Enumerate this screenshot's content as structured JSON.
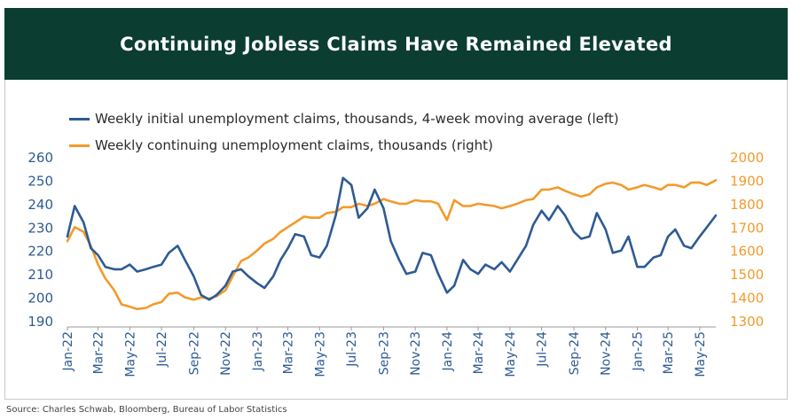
{
  "header": {
    "title": "Continuing Jobless Claims Have Remained Elevated"
  },
  "footer": {
    "source": "Source: Charles Schwab, Bloomberg, Bureau of Labor Statistics"
  },
  "colors": {
    "banner": "#0b3d30",
    "initial_claims": "#2e5b93",
    "continuing_claims": "#f39a2b",
    "left_axis_text": "#2e5b93",
    "right_axis_text": "#f39a2b"
  },
  "chart_data": {
    "type": "line",
    "title": "Continuing Jobless Claims Have Remained Elevated",
    "grid": false,
    "legend_position": "top-left",
    "x_ticks": [
      "Jan-22",
      "Mar-22",
      "May-22",
      "Jul-22",
      "Sep-22",
      "Nov-22",
      "Jan-23",
      "Mar-23",
      "May-23",
      "Jul-23",
      "Sep-23",
      "Nov-23",
      "Jan-24",
      "Mar-24",
      "May-24",
      "Jul-24",
      "Sep-24",
      "Nov-24",
      "Jan-25",
      "Mar-25",
      "May-25"
    ],
    "x_range": [
      "2022-01",
      "2025-06"
    ],
    "y_left": {
      "ticks": [
        190,
        200,
        210,
        220,
        230,
        240,
        250,
        260
      ],
      "range": [
        190,
        260
      ]
    },
    "y_right": {
      "ticks": [
        1300,
        1400,
        1500,
        1600,
        1700,
        1800,
        1900,
        2000
      ],
      "range": [
        1300,
        2000
      ]
    },
    "series": [
      {
        "name": "Weekly initial unemployment claims, thousands, 4-week moving average (left)",
        "axis": "left",
        "x": [
          "2022-01",
          "2022-01-15",
          "2022-02",
          "2022-02-15",
          "2022-03",
          "2022-03-15",
          "2022-04",
          "2022-04-15",
          "2022-05",
          "2022-05-15",
          "2022-06",
          "2022-06-15",
          "2022-07",
          "2022-07-15",
          "2022-08",
          "2022-08-15",
          "2022-09",
          "2022-09-15",
          "2022-10",
          "2022-10-15",
          "2022-11",
          "2022-11-15",
          "2022-12",
          "2022-12-15",
          "2023-01",
          "2023-01-15",
          "2023-02",
          "2023-02-15",
          "2023-03",
          "2023-03-15",
          "2023-04",
          "2023-04-15",
          "2023-05",
          "2023-05-15",
          "2023-06",
          "2023-06-15",
          "2023-07",
          "2023-07-15",
          "2023-08",
          "2023-08-15",
          "2023-09",
          "2023-09-15",
          "2023-10",
          "2023-10-15",
          "2023-11",
          "2023-11-15",
          "2023-12",
          "2023-12-15",
          "2024-01",
          "2024-01-15",
          "2024-02",
          "2024-02-15",
          "2024-03",
          "2024-03-15",
          "2024-04",
          "2024-04-15",
          "2024-05",
          "2024-05-15",
          "2024-06",
          "2024-06-15",
          "2024-07",
          "2024-07-15",
          "2024-08",
          "2024-08-15",
          "2024-09",
          "2024-09-15",
          "2024-10",
          "2024-10-15",
          "2024-11",
          "2024-11-15",
          "2024-12",
          "2024-12-15",
          "2025-01",
          "2025-01-15",
          "2025-02",
          "2025-02-15",
          "2025-03",
          "2025-03-15",
          "2025-04",
          "2025-04-15",
          "2025-05",
          "2025-05-15",
          "2025-06"
        ],
        "values": [
          226,
          239,
          232,
          221,
          218,
          213,
          212,
          212,
          214,
          211,
          212,
          213,
          214,
          219,
          222,
          216,
          209,
          201,
          199,
          201,
          205,
          211,
          212,
          209,
          206,
          204,
          209,
          216,
          221,
          227,
          226,
          218,
          217,
          222,
          235,
          251,
          248,
          234,
          238,
          246,
          238,
          224,
          216,
          210,
          211,
          219,
          218,
          210,
          202,
          205,
          216,
          212,
          210,
          214,
          212,
          215,
          211,
          216,
          222,
          231,
          237,
          233,
          239,
          235,
          228,
          225,
          226,
          236,
          229,
          219,
          220,
          226,
          213,
          213,
          217,
          218,
          226,
          229,
          222,
          221,
          226,
          230,
          235
        ]
      },
      {
        "name": "Weekly continuing unemployment claims, thousands (right)",
        "axis": "right",
        "x": [
          "2022-01",
          "2022-01-15",
          "2022-02",
          "2022-02-15",
          "2022-03",
          "2022-03-15",
          "2022-04",
          "2022-04-15",
          "2022-05",
          "2022-05-15",
          "2022-06",
          "2022-06-15",
          "2022-07",
          "2022-07-15",
          "2022-08",
          "2022-08-15",
          "2022-09",
          "2022-09-15",
          "2022-10",
          "2022-10-15",
          "2022-11",
          "2022-11-15",
          "2022-12",
          "2022-12-15",
          "2023-01",
          "2023-01-15",
          "2023-02",
          "2023-02-15",
          "2023-03",
          "2023-03-15",
          "2023-04",
          "2023-04-15",
          "2023-05",
          "2023-05-15",
          "2023-06",
          "2023-06-15",
          "2023-07",
          "2023-07-15",
          "2023-08",
          "2023-08-15",
          "2023-09",
          "2023-09-15",
          "2023-10",
          "2023-10-15",
          "2023-11",
          "2023-11-15",
          "2023-12",
          "2023-12-15",
          "2024-01",
          "2024-01-15",
          "2024-02",
          "2024-02-15",
          "2024-03",
          "2024-03-15",
          "2024-04",
          "2024-04-15",
          "2024-05",
          "2024-05-15",
          "2024-06",
          "2024-06-15",
          "2024-07",
          "2024-07-15",
          "2024-08",
          "2024-08-15",
          "2024-09",
          "2024-09-15",
          "2024-10",
          "2024-10-15",
          "2024-11",
          "2024-11-15",
          "2024-12",
          "2024-12-15",
          "2025-01",
          "2025-01-15",
          "2025-02",
          "2025-02-15",
          "2025-03",
          "2025-03-15",
          "2025-04",
          "2025-04-15",
          "2025-05",
          "2025-05-15",
          "2025-06"
        ],
        "values": [
          1640,
          1700,
          1680,
          1620,
          1540,
          1480,
          1430,
          1370,
          1360,
          1350,
          1355,
          1370,
          1380,
          1415,
          1420,
          1400,
          1390,
          1400,
          1395,
          1405,
          1430,
          1490,
          1555,
          1570,
          1600,
          1630,
          1650,
          1680,
          1700,
          1720,
          1745,
          1740,
          1740,
          1760,
          1765,
          1785,
          1785,
          1800,
          1790,
          1800,
          1820,
          1810,
          1800,
          1800,
          1815,
          1810,
          1810,
          1800,
          1730,
          1815,
          1790,
          1790,
          1800,
          1795,
          1790,
          1780,
          1790,
          1800,
          1815,
          1820,
          1860,
          1860,
          1870,
          1855,
          1840,
          1830,
          1840,
          1870,
          1885,
          1890,
          1880,
          1860,
          1870,
          1880,
          1870,
          1860,
          1880,
          1880,
          1870,
          1890,
          1890,
          1880,
          1900
        ]
      }
    ]
  }
}
